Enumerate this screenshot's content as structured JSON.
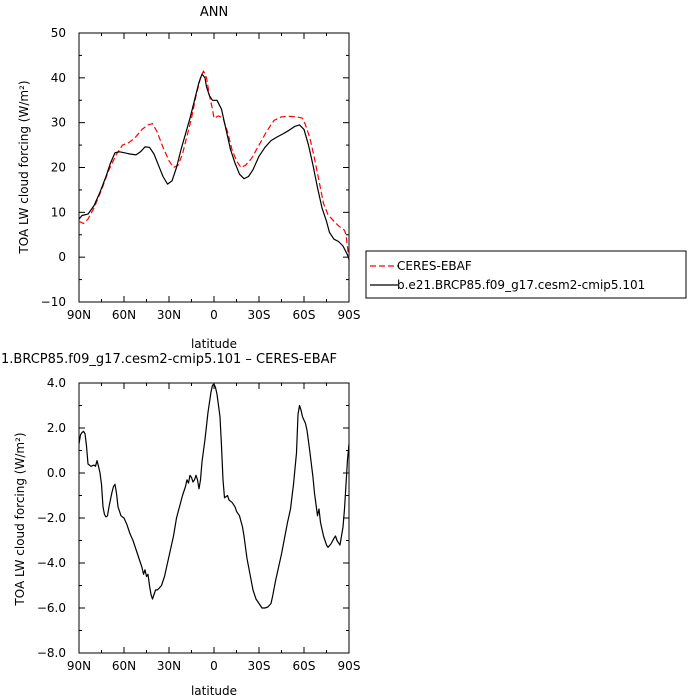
{
  "colors": {
    "obs": "#ff0000",
    "model": "#000000",
    "axis": "#000000"
  },
  "legend": {
    "entries": [
      {
        "label": "CERES-EBAF",
        "style": "dashed",
        "color": "#ff0000"
      },
      {
        "label": "b.e21.BRCP85.f09_g17.cesm2-cmip5.101",
        "style": "solid",
        "color": "#000000"
      }
    ]
  },
  "chart_data": [
    {
      "type": "line",
      "title": "ANN",
      "xlabel": "latitude",
      "ylabel": "TOA LW cloud forcing (W/m²)",
      "xlim": [
        -90,
        90
      ],
      "ylim": [
        -10,
        50
      ],
      "x_direction": "descending (90N on left, 90S on right)",
      "x_ticks": [
        -90,
        -60,
        -30,
        0,
        30,
        60,
        90
      ],
      "x_tick_labels": [
        "90N",
        "60N",
        "30N",
        "0",
        "30S",
        "60S",
        "90S"
      ],
      "y_ticks": [
        -10,
        0,
        10,
        20,
        30,
        40,
        50
      ],
      "y_tick_labels": [
        "−10",
        "0",
        "10",
        "20",
        "30",
        "40",
        "50"
      ],
      "series": [
        {
          "name": "CERES-EBAF",
          "style": "dashed",
          "points": [
            [
              -90,
              8
            ],
            [
              -87,
              7.5
            ],
            [
              -84,
              8.5
            ],
            [
              -80,
              11
            ],
            [
              -75,
              15
            ],
            [
              -70,
              19.5
            ],
            [
              -65,
              23
            ],
            [
              -61,
              25
            ],
            [
              -57,
              25.5
            ],
            [
              -53,
              26.5
            ],
            [
              -48,
              28.5
            ],
            [
              -44,
              29.5
            ],
            [
              -41,
              29.8
            ],
            [
              -38,
              28
            ],
            [
              -34,
              24.5
            ],
            [
              -30,
              21.5
            ],
            [
              -27,
              20
            ],
            [
              -24,
              20.5
            ],
            [
              -21,
              23
            ],
            [
              -18,
              27
            ],
            [
              -15,
              31
            ],
            [
              -12,
              36
            ],
            [
              -9,
              40
            ],
            [
              -7,
              41.5
            ],
            [
              -5,
              40
            ],
            [
              -3,
              36
            ],
            [
              -1,
              33
            ],
            [
              0,
              31
            ],
            [
              3,
              31.5
            ],
            [
              6,
              31
            ],
            [
              9,
              28
            ],
            [
              12,
              24
            ],
            [
              15,
              21.5
            ],
            [
              18,
              20
            ],
            [
              21,
              20.5
            ],
            [
              25,
              22
            ],
            [
              30,
              25
            ],
            [
              35,
              28
            ],
            [
              40,
              30.5
            ],
            [
              45,
              31.3
            ],
            [
              50,
              31.4
            ],
            [
              55,
              31.3
            ],
            [
              59,
              31
            ],
            [
              61,
              29.5
            ],
            [
              64,
              26.5
            ],
            [
              67,
              22
            ],
            [
              70,
              17
            ],
            [
              73,
              12
            ],
            [
              76,
              9.5
            ],
            [
              80,
              8
            ],
            [
              83,
              7
            ],
            [
              87,
              6
            ],
            [
              88,
              5
            ],
            [
              90,
              -0.5
            ]
          ]
        },
        {
          "name": "b.e21.BRCP85.f09_g17.cesm2-cmip5.101",
          "style": "solid",
          "points": [
            [
              -90,
              8.5
            ],
            [
              -88,
              9.3
            ],
            [
              -84,
              9.6
            ],
            [
              -80,
              11.5
            ],
            [
              -76,
              14.5
            ],
            [
              -72,
              18
            ],
            [
              -69,
              21
            ],
            [
              -66,
              23.3
            ],
            [
              -63,
              23.5
            ],
            [
              -60,
              23.3
            ],
            [
              -56,
              23
            ],
            [
              -52,
              22.8
            ],
            [
              -49,
              23.5
            ],
            [
              -46,
              24.6
            ],
            [
              -43,
              24.5
            ],
            [
              -40,
              23
            ],
            [
              -37,
              20.5
            ],
            [
              -34,
              18
            ],
            [
              -31,
              16.3
            ],
            [
              -28,
              17
            ],
            [
              -25,
              20
            ],
            [
              -22,
              24
            ],
            [
              -19,
              27.5
            ],
            [
              -16,
              31
            ],
            [
              -13,
              35
            ],
            [
              -10,
              39
            ],
            [
              -8,
              40.8
            ],
            [
              -6,
              40
            ],
            [
              -5,
              38
            ],
            [
              -3,
              36
            ],
            [
              -1,
              35
            ],
            [
              2,
              35
            ],
            [
              5,
              33
            ],
            [
              8,
              28.5
            ],
            [
              11,
              24
            ],
            [
              14,
              21
            ],
            [
              17,
              18.5
            ],
            [
              20,
              17.5
            ],
            [
              23,
              18
            ],
            [
              26,
              19.5
            ],
            [
              30,
              22.5
            ],
            [
              34,
              24.5
            ],
            [
              38,
              26
            ],
            [
              42,
              26.8
            ],
            [
              46,
              27.5
            ],
            [
              50,
              28.3
            ],
            [
              54,
              29.2
            ],
            [
              57,
              29.5
            ],
            [
              60,
              28.5
            ],
            [
              63,
              25
            ],
            [
              66,
              20.5
            ],
            [
              69,
              15.5
            ],
            [
              72,
              11
            ],
            [
              75,
              8
            ],
            [
              77,
              5.5
            ],
            [
              80,
              4
            ],
            [
              83,
              3.5
            ],
            [
              86,
              2.5
            ],
            [
              89,
              0.5
            ],
            [
              90,
              -0.5
            ]
          ]
        }
      ]
    },
    {
      "type": "line",
      "title": "1.BRCP85.f09_g17.cesm2-cmip5.101 – CERES-EBAF",
      "xlabel": "latitude",
      "ylabel": "TOA LW cloud forcing (W/m²)",
      "xlim": [
        -90,
        90
      ],
      "ylim": [
        -8,
        4
      ],
      "x_direction": "descending (90N on left, 90S on right)",
      "x_ticks": [
        -90,
        -60,
        -30,
        0,
        30,
        60,
        90
      ],
      "x_tick_labels": [
        "90N",
        "60N",
        "30N",
        "0",
        "30S",
        "60S",
        "90S"
      ],
      "y_ticks": [
        -8,
        -6,
        -4,
        -2,
        0,
        2,
        4
      ],
      "y_tick_labels": [
        "−8.0",
        "−6.0",
        "−4.0",
        "−2.0",
        "0.0",
        "2.0",
        "4.0"
      ],
      "series": [
        {
          "style": "solid",
          "points": [
            [
              -90,
              1.3
            ],
            [
              -89,
              1.7
            ],
            [
              -88,
              1.8
            ],
            [
              -87,
              1.85
            ],
            [
              -86,
              1.75
            ],
            [
              -85,
              1.2
            ],
            [
              -84,
              0.4
            ],
            [
              -82,
              0.3
            ],
            [
              -80,
              0.35
            ],
            [
              -79,
              0.3
            ],
            [
              -78,
              0.55
            ],
            [
              -77,
              0.3
            ],
            [
              -76,
              0.0
            ],
            [
              -75,
              -0.5
            ],
            [
              -74,
              -1.5
            ],
            [
              -73,
              -1.85
            ],
            [
              -72,
              -1.95
            ],
            [
              -71,
              -1.9
            ],
            [
              -70,
              -1.5
            ],
            [
              -68,
              -0.85
            ],
            [
              -67,
              -0.6
            ],
            [
              -66,
              -0.5
            ],
            [
              -65,
              -0.9
            ],
            [
              -64,
              -1.5
            ],
            [
              -62,
              -1.9
            ],
            [
              -60,
              -2.0
            ],
            [
              -58,
              -2.3
            ],
            [
              -56,
              -2.7
            ],
            [
              -54,
              -3.0
            ],
            [
              -52,
              -3.4
            ],
            [
              -50,
              -3.8
            ],
            [
              -48,
              -4.2
            ],
            [
              -47,
              -4.5
            ],
            [
              -46,
              -4.3
            ],
            [
              -45,
              -4.6
            ],
            [
              -44,
              -4.5
            ],
            [
              -43,
              -5.0
            ],
            [
              -42,
              -5.4
            ],
            [
              -41,
              -5.6
            ],
            [
              -40,
              -5.4
            ],
            [
              -39,
              -5.2
            ],
            [
              -38,
              -5.2
            ],
            [
              -37,
              -5.15
            ],
            [
              -35,
              -5.0
            ],
            [
              -33,
              -4.6
            ],
            [
              -31,
              -4.0
            ],
            [
              -29,
              -3.4
            ],
            [
              -27,
              -2.8
            ],
            [
              -25,
              -2.0
            ],
            [
              -23,
              -1.5
            ],
            [
              -21,
              -1.0
            ],
            [
              -19,
              -0.6
            ],
            [
              -18,
              -0.3
            ],
            [
              -17,
              -0.45
            ],
            [
              -16,
              -0.1
            ],
            [
              -15,
              -0.2
            ],
            [
              -14,
              -0.4
            ],
            [
              -13,
              -0.3
            ],
            [
              -12,
              -0.1
            ],
            [
              -11,
              -0.3
            ],
            [
              -10,
              -0.7
            ],
            [
              -9,
              -0.3
            ],
            [
              -8,
              0.5
            ],
            [
              -6,
              1.5
            ],
            [
              -4,
              2.7
            ],
            [
              -2,
              3.6
            ],
            [
              -1,
              3.9
            ],
            [
              0,
              3.95
            ],
            [
              1,
              3.8
            ],
            [
              2,
              3.5
            ],
            [
              3,
              3.0
            ],
            [
              4,
              2.5
            ],
            [
              5,
              1.2
            ],
            [
              6,
              -0.3
            ],
            [
              7,
              -1.1
            ],
            [
              8,
              -1.05
            ],
            [
              9,
              -1.0
            ],
            [
              10,
              -1.2
            ],
            [
              12,
              -1.3
            ],
            [
              14,
              -1.5
            ],
            [
              15,
              -1.7
            ],
            [
              17,
              -1.9
            ],
            [
              19,
              -2.4
            ],
            [
              20,
              -2.8
            ],
            [
              21,
              -3.3
            ],
            [
              22,
              -3.8
            ],
            [
              24,
              -4.5
            ],
            [
              26,
              -5.2
            ],
            [
              28,
              -5.6
            ],
            [
              30,
              -5.8
            ],
            [
              32,
              -6.0
            ],
            [
              34,
              -6.0
            ],
            [
              36,
              -5.95
            ],
            [
              38,
              -5.8
            ],
            [
              39,
              -5.5
            ],
            [
              41,
              -4.8
            ],
            [
              43,
              -4.2
            ],
            [
              45,
              -3.6
            ],
            [
              47,
              -2.9
            ],
            [
              49,
              -2.2
            ],
            [
              51,
              -1.6
            ],
            [
              53,
              -0.5
            ],
            [
              55,
              0.9
            ],
            [
              56,
              2.6
            ],
            [
              57,
              3.0
            ],
            [
              58,
              2.8
            ],
            [
              59,
              2.5
            ],
            [
              61,
              2.2
            ],
            [
              62,
              1.9
            ],
            [
              64,
              0.9
            ],
            [
              66,
              -0.2
            ],
            [
              67,
              -0.9
            ],
            [
              68,
              -1.4
            ],
            [
              69,
              -1.9
            ],
            [
              70,
              -1.6
            ],
            [
              71,
              -2.2
            ],
            [
              73,
              -2.8
            ],
            [
              74,
              -3.0
            ],
            [
              75,
              -3.2
            ],
            [
              76,
              -3.3
            ],
            [
              78,
              -3.15
            ],
            [
              80,
              -2.9
            ],
            [
              81,
              -2.8
            ],
            [
              82,
              -3.0
            ],
            [
              83,
              -3.1
            ],
            [
              84,
              -3.2
            ],
            [
              85,
              -2.8
            ],
            [
              86,
              -2.4
            ],
            [
              87,
              -1.6
            ],
            [
              88,
              -0.5
            ],
            [
              89,
              0.6
            ],
            [
              90,
              1.3
            ]
          ]
        }
      ]
    }
  ]
}
